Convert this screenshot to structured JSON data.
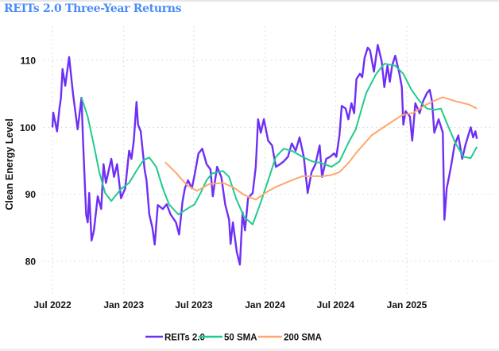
{
  "chart_data": {
    "type": "line",
    "title": "REITs 2.0 Three-Year Returns",
    "xlabel": "",
    "ylabel": "Clean Energy Level",
    "ylim": [
      78,
      113
    ],
    "grid": true,
    "legend_position": "bottom",
    "x_ticks": [
      {
        "date": "2022-07-01",
        "label": "Jul 2022"
      },
      {
        "date": "2023-01-01",
        "label": "Jan 2023"
      },
      {
        "date": "2023-07-01",
        "label": "Jul 2023"
      },
      {
        "date": "2024-01-01",
        "label": "Jan 2024"
      },
      {
        "date": "2024-07-01",
        "label": "Jul 2024"
      },
      {
        "date": "2025-01-01",
        "label": "Jan 2025"
      }
    ],
    "y_ticks": [
      {
        "value": 80,
        "label": "80"
      },
      {
        "value": 90,
        "label": "90"
      },
      {
        "value": 100,
        "label": "100"
      },
      {
        "value": 110,
        "label": "110"
      }
    ],
    "series": [
      {
        "name": "REITs 2.0",
        "color": "#6e2ff5",
        "points": [
          [
            "2022-07-01",
            100.0
          ],
          [
            "2022-07-03",
            102.2
          ],
          [
            "2022-07-13",
            99.4
          ],
          [
            "2022-07-19",
            102.8
          ],
          [
            "2022-07-23",
            104.4
          ],
          [
            "2022-07-27",
            108.7
          ],
          [
            "2022-08-03",
            106.2
          ],
          [
            "2022-08-13",
            110.5
          ],
          [
            "2022-08-23",
            105.1
          ],
          [
            "2022-09-04",
            99.7
          ],
          [
            "2022-09-14",
            104.4
          ],
          [
            "2022-09-18",
            98.0
          ],
          [
            "2022-09-26",
            87.0
          ],
          [
            "2022-09-30",
            85.8
          ],
          [
            "2022-10-04",
            90.2
          ],
          [
            "2022-10-10",
            83.1
          ],
          [
            "2022-10-16",
            84.6
          ],
          [
            "2022-10-26",
            89.7
          ],
          [
            "2022-11-04",
            87.8
          ],
          [
            "2022-11-10",
            94.5
          ],
          [
            "2022-11-16",
            91.7
          ],
          [
            "2022-11-30",
            95.3
          ],
          [
            "2022-12-07",
            92.6
          ],
          [
            "2022-12-15",
            94.5
          ],
          [
            "2022-12-25",
            89.4
          ],
          [
            "2023-01-05",
            90.9
          ],
          [
            "2023-01-15",
            96.5
          ],
          [
            "2023-01-21",
            95.3
          ],
          [
            "2023-01-27",
            98.0
          ],
          [
            "2023-02-03",
            103.8
          ],
          [
            "2023-02-07",
            100.4
          ],
          [
            "2023-02-14",
            99.4
          ],
          [
            "2023-02-24",
            93.7
          ],
          [
            "2023-03-01",
            92.1
          ],
          [
            "2023-03-08",
            87.0
          ],
          [
            "2023-03-16",
            85.0
          ],
          [
            "2023-03-22",
            82.5
          ],
          [
            "2023-03-30",
            88.4
          ],
          [
            "2023-04-12",
            87.8
          ],
          [
            "2023-04-22",
            88.5
          ],
          [
            "2023-05-02",
            87.0
          ],
          [
            "2023-05-16",
            85.8
          ],
          [
            "2023-05-24",
            84.0
          ],
          [
            "2023-06-02",
            89.0
          ],
          [
            "2023-06-08",
            90.9
          ],
          [
            "2023-06-16",
            92.1
          ],
          [
            "2023-06-26",
            90.9
          ],
          [
            "2023-07-03",
            92.9
          ],
          [
            "2023-07-13",
            96.1
          ],
          [
            "2023-07-23",
            96.8
          ],
          [
            "2023-08-03",
            94.5
          ],
          [
            "2023-08-13",
            93.7
          ],
          [
            "2023-08-19",
            89.7
          ],
          [
            "2023-08-30",
            94.1
          ],
          [
            "2023-09-10",
            92.6
          ],
          [
            "2023-09-20",
            88.5
          ],
          [
            "2023-09-30",
            86.2
          ],
          [
            "2023-10-04",
            82.6
          ],
          [
            "2023-10-10",
            85.8
          ],
          [
            "2023-10-20",
            81.4
          ],
          [
            "2023-10-28",
            79.5
          ],
          [
            "2023-11-04",
            87.3
          ],
          [
            "2023-11-10",
            84.6
          ],
          [
            "2023-11-18",
            89.4
          ],
          [
            "2023-11-30",
            90.2
          ],
          [
            "2023-12-08",
            94.1
          ],
          [
            "2023-12-14",
            101.2
          ],
          [
            "2023-12-21",
            99.2
          ],
          [
            "2023-12-29",
            101.2
          ],
          [
            "2024-01-09",
            98.0
          ],
          [
            "2024-01-19",
            97.3
          ],
          [
            "2024-01-29",
            94.1
          ],
          [
            "2024-02-09",
            94.5
          ],
          [
            "2024-02-18",
            94.9
          ],
          [
            "2024-02-29",
            95.6
          ],
          [
            "2024-03-10",
            97.6
          ],
          [
            "2024-03-20",
            96.5
          ],
          [
            "2024-03-30",
            98.5
          ],
          [
            "2024-04-10",
            95.6
          ],
          [
            "2024-04-20",
            90.2
          ],
          [
            "2024-04-30",
            93.3
          ],
          [
            "2024-05-10",
            94.5
          ],
          [
            "2024-05-21",
            97.3
          ],
          [
            "2024-05-27",
            92.6
          ],
          [
            "2024-06-07",
            95.3
          ],
          [
            "2024-06-17",
            95.6
          ],
          [
            "2024-06-27",
            96.1
          ],
          [
            "2024-07-03",
            95.6
          ],
          [
            "2024-07-11",
            98.8
          ],
          [
            "2024-07-17",
            103.2
          ],
          [
            "2024-07-27",
            102.8
          ],
          [
            "2024-08-03",
            101.2
          ],
          [
            "2024-08-11",
            103.6
          ],
          [
            "2024-08-18",
            102.1
          ],
          [
            "2024-08-24",
            107.2
          ],
          [
            "2024-09-02",
            108.0
          ],
          [
            "2024-09-08",
            107.5
          ],
          [
            "2024-09-14",
            110.4
          ],
          [
            "2024-09-22",
            111.9
          ],
          [
            "2024-09-28",
            111.5
          ],
          [
            "2024-10-08",
            108.3
          ],
          [
            "2024-10-18",
            112.3
          ],
          [
            "2024-10-28",
            109.9
          ],
          [
            "2024-11-04",
            106.0
          ],
          [
            "2024-11-12",
            109.2
          ],
          [
            "2024-11-18",
            106.8
          ],
          [
            "2024-11-24",
            109.2
          ],
          [
            "2024-12-02",
            110.7
          ],
          [
            "2024-12-13",
            108.0
          ],
          [
            "2024-12-19",
            106.0
          ],
          [
            "2024-12-23",
            100.4
          ],
          [
            "2024-12-29",
            102.4
          ],
          [
            "2025-01-09",
            101.6
          ],
          [
            "2025-01-15",
            98.0
          ],
          [
            "2025-01-23",
            103.6
          ],
          [
            "2025-02-03",
            102.1
          ],
          [
            "2025-02-12",
            103.9
          ],
          [
            "2025-02-22",
            105.1
          ],
          [
            "2025-03-01",
            105.6
          ],
          [
            "2025-03-07",
            103.9
          ],
          [
            "2025-03-13",
            99.2
          ],
          [
            "2025-03-24",
            101.2
          ],
          [
            "2025-04-04",
            99.2
          ],
          [
            "2025-04-08",
            86.2
          ],
          [
            "2025-04-14",
            90.9
          ],
          [
            "2025-04-20",
            92.6
          ],
          [
            "2025-04-26",
            94.5
          ],
          [
            "2025-05-04",
            97.3
          ],
          [
            "2025-05-14",
            98.8
          ],
          [
            "2025-05-24",
            95.3
          ],
          [
            "2025-06-01",
            97.3
          ],
          [
            "2025-06-15",
            100.0
          ],
          [
            "2025-06-21",
            98.5
          ],
          [
            "2025-06-27",
            99.4
          ],
          [
            "2025-07-01",
            98.3
          ]
        ]
      },
      {
        "name": "50 SMA",
        "color": "#1ecb8c",
        "points": [
          [
            "2022-09-14",
            104.4
          ],
          [
            "2022-09-30",
            101.6
          ],
          [
            "2022-10-16",
            97.3
          ],
          [
            "2022-10-30",
            93.3
          ],
          [
            "2022-11-14",
            90.2
          ],
          [
            "2022-11-30",
            89.0
          ],
          [
            "2022-12-25",
            90.8
          ],
          [
            "2023-01-15",
            91.7
          ],
          [
            "2023-02-05",
            93.7
          ],
          [
            "2023-02-21",
            95.1
          ],
          [
            "2023-03-08",
            95.5
          ],
          [
            "2023-03-26",
            94.1
          ],
          [
            "2023-04-12",
            90.9
          ],
          [
            "2023-04-28",
            88.5
          ],
          [
            "2023-05-22",
            87.0
          ],
          [
            "2023-06-13",
            87.8
          ],
          [
            "2023-07-03",
            88.5
          ],
          [
            "2023-07-21",
            90.5
          ],
          [
            "2023-08-03",
            92.1
          ],
          [
            "2023-08-17",
            93.1
          ],
          [
            "2023-09-14",
            93.5
          ],
          [
            "2023-09-30",
            92.6
          ],
          [
            "2023-10-18",
            89.4
          ],
          [
            "2023-11-08",
            86.6
          ],
          [
            "2023-11-30",
            85.5
          ],
          [
            "2023-12-19",
            88.5
          ],
          [
            "2024-01-09",
            92.1
          ],
          [
            "2024-01-29",
            95.6
          ],
          [
            "2024-02-18",
            96.8
          ],
          [
            "2024-03-10",
            96.5
          ],
          [
            "2024-04-06",
            95.6
          ],
          [
            "2024-05-02",
            94.9
          ],
          [
            "2024-05-23",
            94.7
          ],
          [
            "2024-06-21",
            94.1
          ],
          [
            "2024-07-11",
            94.9
          ],
          [
            "2024-08-05",
            97.9
          ],
          [
            "2024-08-22",
            99.7
          ],
          [
            "2024-09-18",
            105.1
          ],
          [
            "2024-10-14",
            108.0
          ],
          [
            "2024-11-04",
            109.5
          ],
          [
            "2024-12-02",
            109.2
          ],
          [
            "2024-12-23",
            108.0
          ],
          [
            "2025-01-13",
            105.6
          ],
          [
            "2025-02-03",
            103.9
          ],
          [
            "2025-02-22",
            102.8
          ],
          [
            "2025-03-13",
            102.6
          ],
          [
            "2025-03-30",
            102.8
          ],
          [
            "2025-04-16",
            100.4
          ],
          [
            "2025-05-06",
            97.7
          ],
          [
            "2025-05-27",
            95.6
          ],
          [
            "2025-06-15",
            95.4
          ],
          [
            "2025-07-01",
            97.1
          ]
        ]
      },
      {
        "name": "200 SMA",
        "color": "#ffa76e",
        "points": [
          [
            "2023-04-18",
            94.8
          ],
          [
            "2023-05-16",
            93.2
          ],
          [
            "2023-06-13",
            91.4
          ],
          [
            "2023-07-09",
            90.5
          ],
          [
            "2023-08-09",
            91.5
          ],
          [
            "2023-09-14",
            91.7
          ],
          [
            "2023-10-10",
            91.1
          ],
          [
            "2023-11-08",
            89.9
          ],
          [
            "2023-12-08",
            89.2
          ],
          [
            "2024-01-01",
            90.2
          ],
          [
            "2024-01-29",
            91.1
          ],
          [
            "2024-03-02",
            91.9
          ],
          [
            "2024-04-06",
            92.7
          ],
          [
            "2024-05-29",
            92.7
          ],
          [
            "2024-06-21",
            92.9
          ],
          [
            "2024-07-11",
            93.3
          ],
          [
            "2024-08-05",
            94.8
          ],
          [
            "2024-08-22",
            96.1
          ],
          [
            "2024-10-02",
            98.8
          ],
          [
            "2024-11-12",
            100.4
          ],
          [
            "2024-12-19",
            101.8
          ],
          [
            "2025-01-19",
            102.2
          ],
          [
            "2025-02-15",
            103.2
          ],
          [
            "2025-03-10",
            103.9
          ],
          [
            "2025-04-04",
            104.5
          ],
          [
            "2025-05-06",
            103.9
          ],
          [
            "2025-06-11",
            103.4
          ],
          [
            "2025-07-01",
            102.8
          ]
        ]
      }
    ]
  }
}
